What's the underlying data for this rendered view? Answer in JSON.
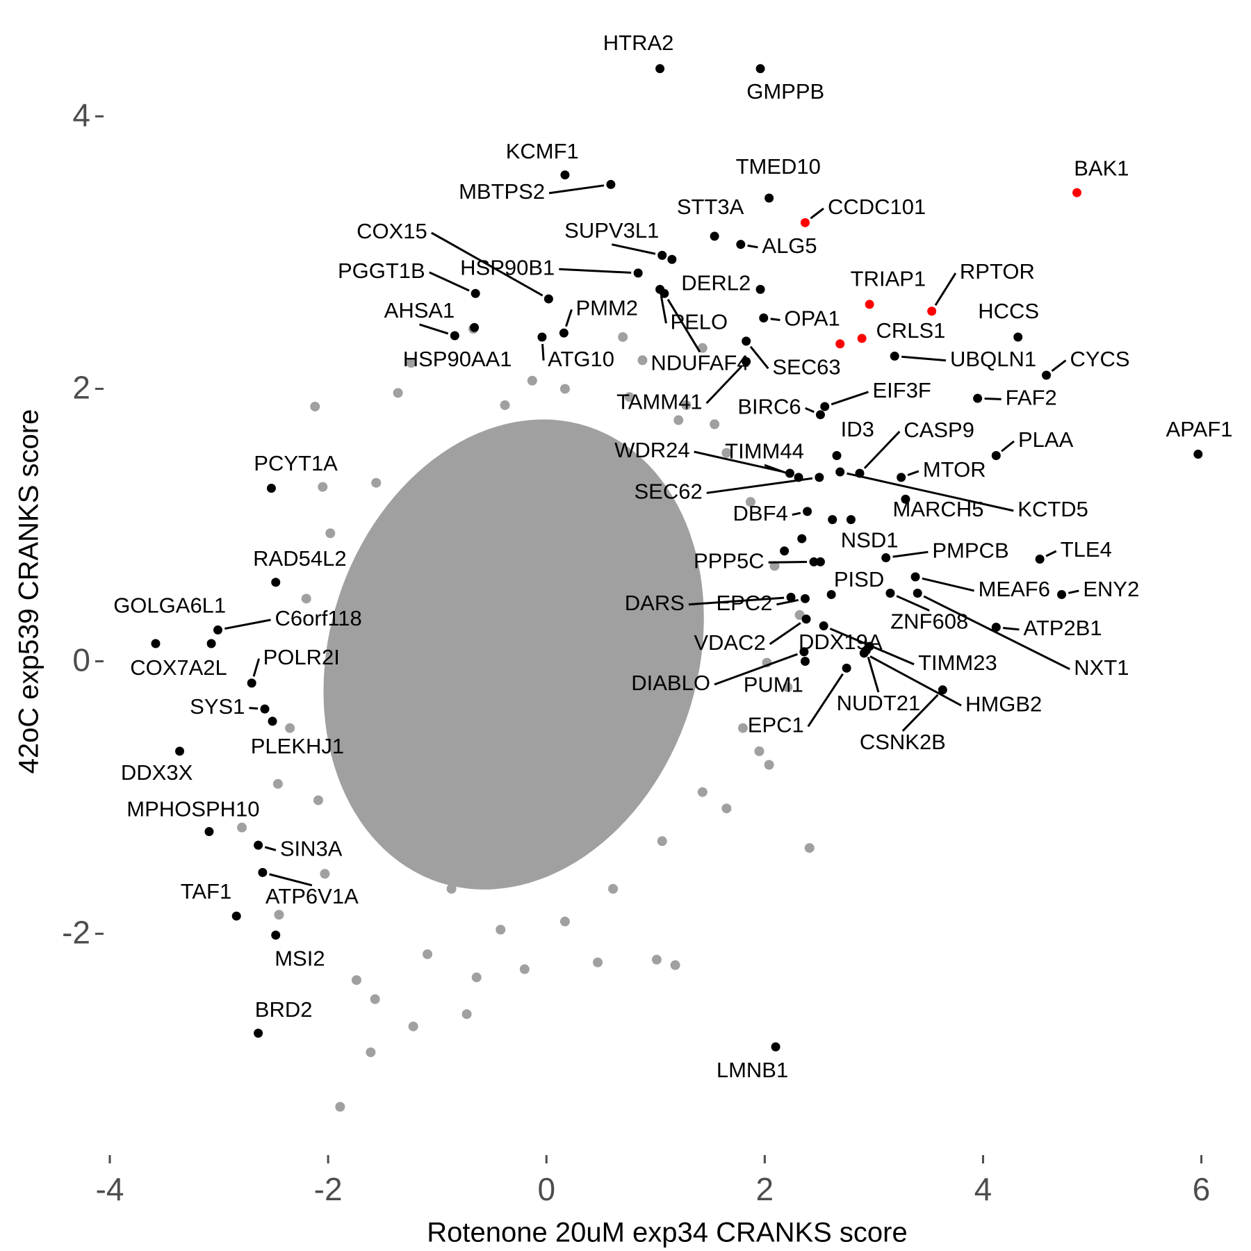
{
  "chart_data": {
    "type": "scatter",
    "xlabel": "Rotenone 20uM exp34 CRANKS score",
    "ylabel": "42oC exp539 CRANKS score",
    "xlim": [
      -4,
      6.2
    ],
    "ylim": [
      -3.65,
      4.65
    ],
    "xticks": [
      -4,
      -2,
      0,
      2,
      4,
      6
    ],
    "yticks": [
      -2,
      0,
      2,
      4
    ],
    "background_points": {
      "color": "#a0a0a0",
      "x": [
        -2.12,
        -2.05,
        -1.56,
        -1.98,
        -1.36,
        -1.24,
        -0.67,
        0.7,
        -2.79,
        -2.46,
        -2.03,
        -2.45,
        -1.74,
        -1.57,
        -1.61,
        -1.89,
        -1.22,
        -0.73,
        1.01,
        1.18,
        2.41,
        2.04,
        1.54,
        1.43,
        0.88,
        1.28,
        -0.13,
        -0.38,
        -0.87,
        -1.61,
        -1.9,
        -1.83,
        -1.53,
        -1.31,
        -0.87,
        -0.42,
        0.17,
        0.61,
        1.06,
        1.43,
        1.8,
        2.02,
        2.09,
        1.87,
        1.65,
        1.21,
        0.76,
        0.17,
        -2.2,
        -2.35,
        -2.09,
        -1.09,
        -0.2,
        -0.64,
        0.47,
        1.65,
        1.95,
        2.21,
        2.32
      ],
      "y": [
        1.87,
        1.28,
        1.31,
        0.94,
        1.97,
        2.19,
        2.44,
        2.38,
        -1.22,
        -0.9,
        -1.56,
        -1.86,
        -2.34,
        -2.48,
        -2.87,
        -3.27,
        -2.68,
        -2.59,
        -2.19,
        -2.23,
        -1.37,
        -0.76,
        1.74,
        2.3,
        2.21,
        1.88,
        2.06,
        1.88,
        1.35,
        0.58,
        0.11,
        -0.37,
        -0.78,
        -1.26,
        -1.67,
        -1.97,
        -1.91,
        -1.67,
        -1.32,
        -0.96,
        -0.49,
        -0.01,
        0.7,
        1.17,
        1.53,
        1.77,
        1.94,
        2.0,
        0.46,
        -0.49,
        -1.02,
        -2.15,
        -2.26,
        -2.32,
        -2.21,
        -1.08,
        -0.66,
        -0.19,
        0.34
      ]
    },
    "highlight_points": {
      "labels": [
        "HTRA2",
        "GMPPB",
        "KCMF1",
        "MBTPS2",
        "TMED10",
        "CCDC101",
        "BAK1",
        "STT3A",
        "ALG5",
        "SUPV3L1",
        "HSP90B1",
        "COX15",
        "PGGT1B",
        "DERL2",
        "PELO",
        "NDUFAF4",
        "OPA1",
        "TRIAP1",
        "RPTOR",
        "CRLS1",
        "HCCS",
        "AHSA1",
        "PMM2",
        "ATG10",
        "HSP90AA1",
        "SEC63",
        "UBQLN1",
        "CYCS",
        "FAF2",
        "EIF3F",
        "BIRC6",
        "TAMM41",
        "APAF1",
        "PLAA",
        "ID3",
        "CASP9",
        "MTOR",
        "KCTD5",
        "TIMM44",
        "WDR24",
        "SEC62",
        "MARCH5",
        "DBF4",
        "NSD1",
        "PMPCB",
        "TLE4",
        "PPP5C",
        "MEAF6",
        "ENY2",
        "PISD",
        "DARS",
        "EPC2",
        "ZNF608",
        "ATP2B1",
        "NXT1",
        "VDAC2",
        "DDX19A",
        "TIMM23",
        "DIABLO",
        "PUM1",
        "HMGB2",
        "NUDT21",
        "CSNK2B",
        "EPC1",
        "LMNB1",
        "PCYT1A",
        "RAD54L2",
        "C6orf118",
        "GOLGA6L1",
        "COX7A2L",
        "POLR2I",
        "SYS1",
        "PLEKHJ1",
        "DDX3X",
        "MPHOSPH10",
        "SIN3A",
        "ATP6V1A",
        "TAF1",
        "MSI2",
        "BRD2",
        null,
        null,
        null,
        null,
        null,
        null
      ],
      "x": [
        1.04,
        1.96,
        0.17,
        0.59,
        2.04,
        2.37,
        4.86,
        1.54,
        1.78,
        1.06,
        0.84,
        0.02,
        -0.65,
        1.96,
        1.04,
        1.08,
        1.99,
        2.96,
        3.53,
        2.89,
        4.32,
        -0.84,
        0.16,
        -0.04,
        -0.66,
        1.83,
        3.19,
        4.58,
        3.95,
        2.55,
        2.51,
        1.83,
        5.97,
        4.12,
        2.66,
        2.87,
        3.25,
        2.69,
        2.31,
        2.23,
        2.5,
        3.29,
        2.39,
        2.79,
        3.11,
        4.52,
        2.45,
        3.38,
        4.72,
        2.61,
        2.24,
        2.37,
        3.15,
        4.12,
        3.4,
        2.38,
        2.96,
        2.54,
        2.36,
        2.37,
        2.91,
        2.93,
        3.63,
        2.75,
        2.1,
        -2.52,
        -2.48,
        -3.01,
        -3.58,
        -3.07,
        -2.7,
        -2.58,
        -2.51,
        -3.36,
        -3.09,
        -2.64,
        -2.6,
        -2.84,
        -2.48,
        -2.64,
        1.15,
        2.62,
        2.18,
        2.34,
        2.51,
        2.69
      ],
      "y": [
        4.35,
        4.35,
        3.57,
        3.5,
        3.4,
        3.22,
        3.44,
        3.12,
        3.06,
        2.98,
        2.85,
        2.66,
        2.7,
        2.73,
        2.73,
        2.7,
        2.52,
        2.62,
        2.57,
        2.37,
        2.38,
        2.39,
        2.41,
        2.38,
        2.45,
        2.35,
        2.24,
        2.1,
        1.93,
        1.87,
        1.81,
        2.2,
        1.52,
        1.51,
        1.51,
        1.38,
        1.35,
        1.39,
        1.35,
        1.38,
        1.35,
        1.19,
        1.1,
        1.04,
        0.76,
        0.75,
        0.73,
        0.62,
        0.49,
        0.49,
        0.47,
        0.46,
        0.5,
        0.25,
        0.5,
        0.31,
        0.11,
        0.26,
        0.07,
        0.0,
        0.06,
        0.08,
        -0.21,
        -0.05,
        -2.83,
        1.27,
        0.58,
        0.23,
        0.13,
        0.13,
        -0.16,
        -0.35,
        -0.44,
        -0.66,
        -1.25,
        -1.35,
        -1.55,
        -1.87,
        -2.01,
        -2.73,
        2.95,
        1.04,
        0.81,
        0.9,
        0.73,
        2.33
      ],
      "colors": [
        "#000000",
        "#000000",
        "#000000",
        "#000000",
        "#000000",
        "#ff0000",
        "#ff0000",
        "#000000",
        "#000000",
        "#000000",
        "#000000",
        "#000000",
        "#000000",
        "#000000",
        "#000000",
        "#000000",
        "#000000",
        "#ff0000",
        "#ff0000",
        "#ff0000",
        "#000000",
        "#000000",
        "#000000",
        "#000000",
        "#000000",
        "#000000",
        "#000000",
        "#000000",
        "#000000",
        "#000000",
        "#000000",
        "#000000",
        "#000000",
        "#000000",
        "#000000",
        "#000000",
        "#000000",
        "#000000",
        "#000000",
        "#000000",
        "#000000",
        "#000000",
        "#000000",
        "#000000",
        "#000000",
        "#000000",
        "#000000",
        "#000000",
        "#000000",
        "#000000",
        "#000000",
        "#000000",
        "#000000",
        "#000000",
        "#000000",
        "#000000",
        "#000000",
        "#000000",
        "#000000",
        "#000000",
        "#000000",
        "#000000",
        "#000000",
        "#000000",
        "#000000",
        "#000000",
        "#000000",
        "#000000",
        "#000000",
        "#000000",
        "#000000",
        "#000000",
        "#000000",
        "#000000",
        "#000000",
        "#000000",
        "#000000",
        "#000000",
        "#000000",
        "#000000",
        "#000000",
        "#000000",
        "#000000",
        "#000000",
        "#000000",
        "#ff0000"
      ]
    }
  }
}
